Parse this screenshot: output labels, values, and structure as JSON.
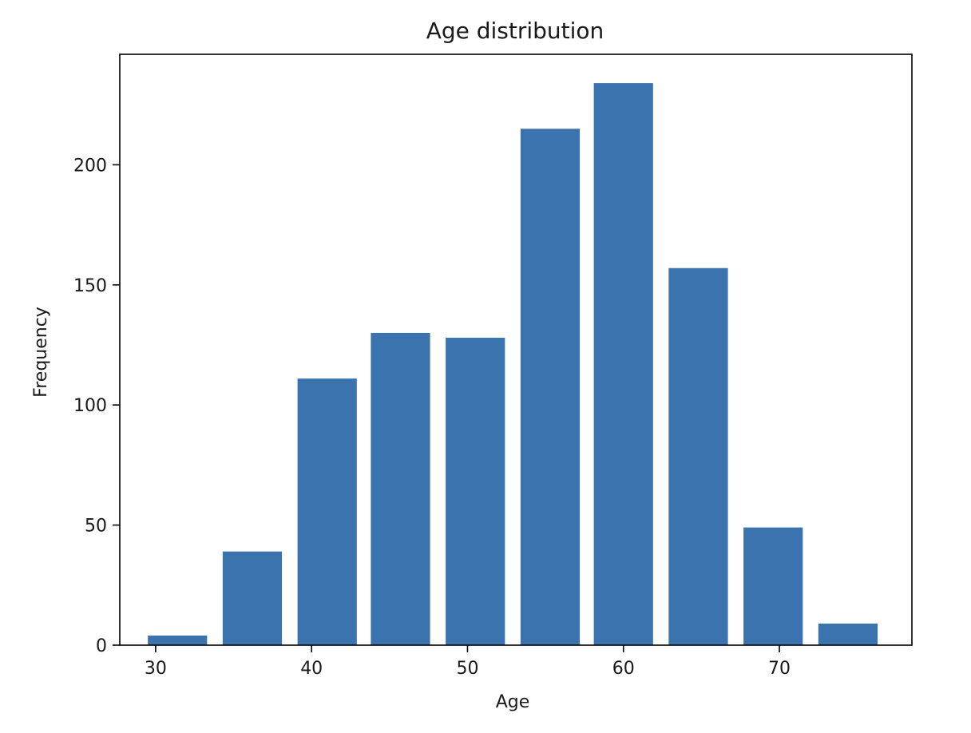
{
  "chart_data": {
    "type": "bar",
    "title": "Age distribution",
    "xlabel": "Age",
    "ylabel": "Frequency",
    "xlim": [
      27.7,
      78.5
    ],
    "ylim": [
      0,
      246
    ],
    "bar_color": "#3b73ae",
    "bins": [
      {
        "start": 29.5,
        "end": 33.3,
        "value": 4
      },
      {
        "start": 34.3,
        "end": 38.1,
        "value": 39
      },
      {
        "start": 39.1,
        "end": 42.9,
        "value": 111
      },
      {
        "start": 43.8,
        "end": 47.6,
        "value": 130
      },
      {
        "start": 48.6,
        "end": 52.4,
        "value": 128
      },
      {
        "start": 53.4,
        "end": 57.2,
        "value": 215
      },
      {
        "start": 58.1,
        "end": 61.9,
        "value": 234
      },
      {
        "start": 62.9,
        "end": 66.7,
        "value": 157
      },
      {
        "start": 67.7,
        "end": 71.5,
        "value": 49
      },
      {
        "start": 72.5,
        "end": 76.3,
        "value": 9
      }
    ],
    "xticks": [
      {
        "value": 30,
        "label": "30"
      },
      {
        "value": 40,
        "label": "40"
      },
      {
        "value": 50,
        "label": "50"
      },
      {
        "value": 60,
        "label": "60"
      },
      {
        "value": 70,
        "label": "70"
      }
    ],
    "yticks": [
      {
        "value": 0,
        "label": "0"
      },
      {
        "value": 50,
        "label": "50"
      },
      {
        "value": 100,
        "label": "100"
      },
      {
        "value": 150,
        "label": "150"
      },
      {
        "value": 200,
        "label": "200"
      }
    ],
    "grid": false,
    "legend": "none"
  }
}
